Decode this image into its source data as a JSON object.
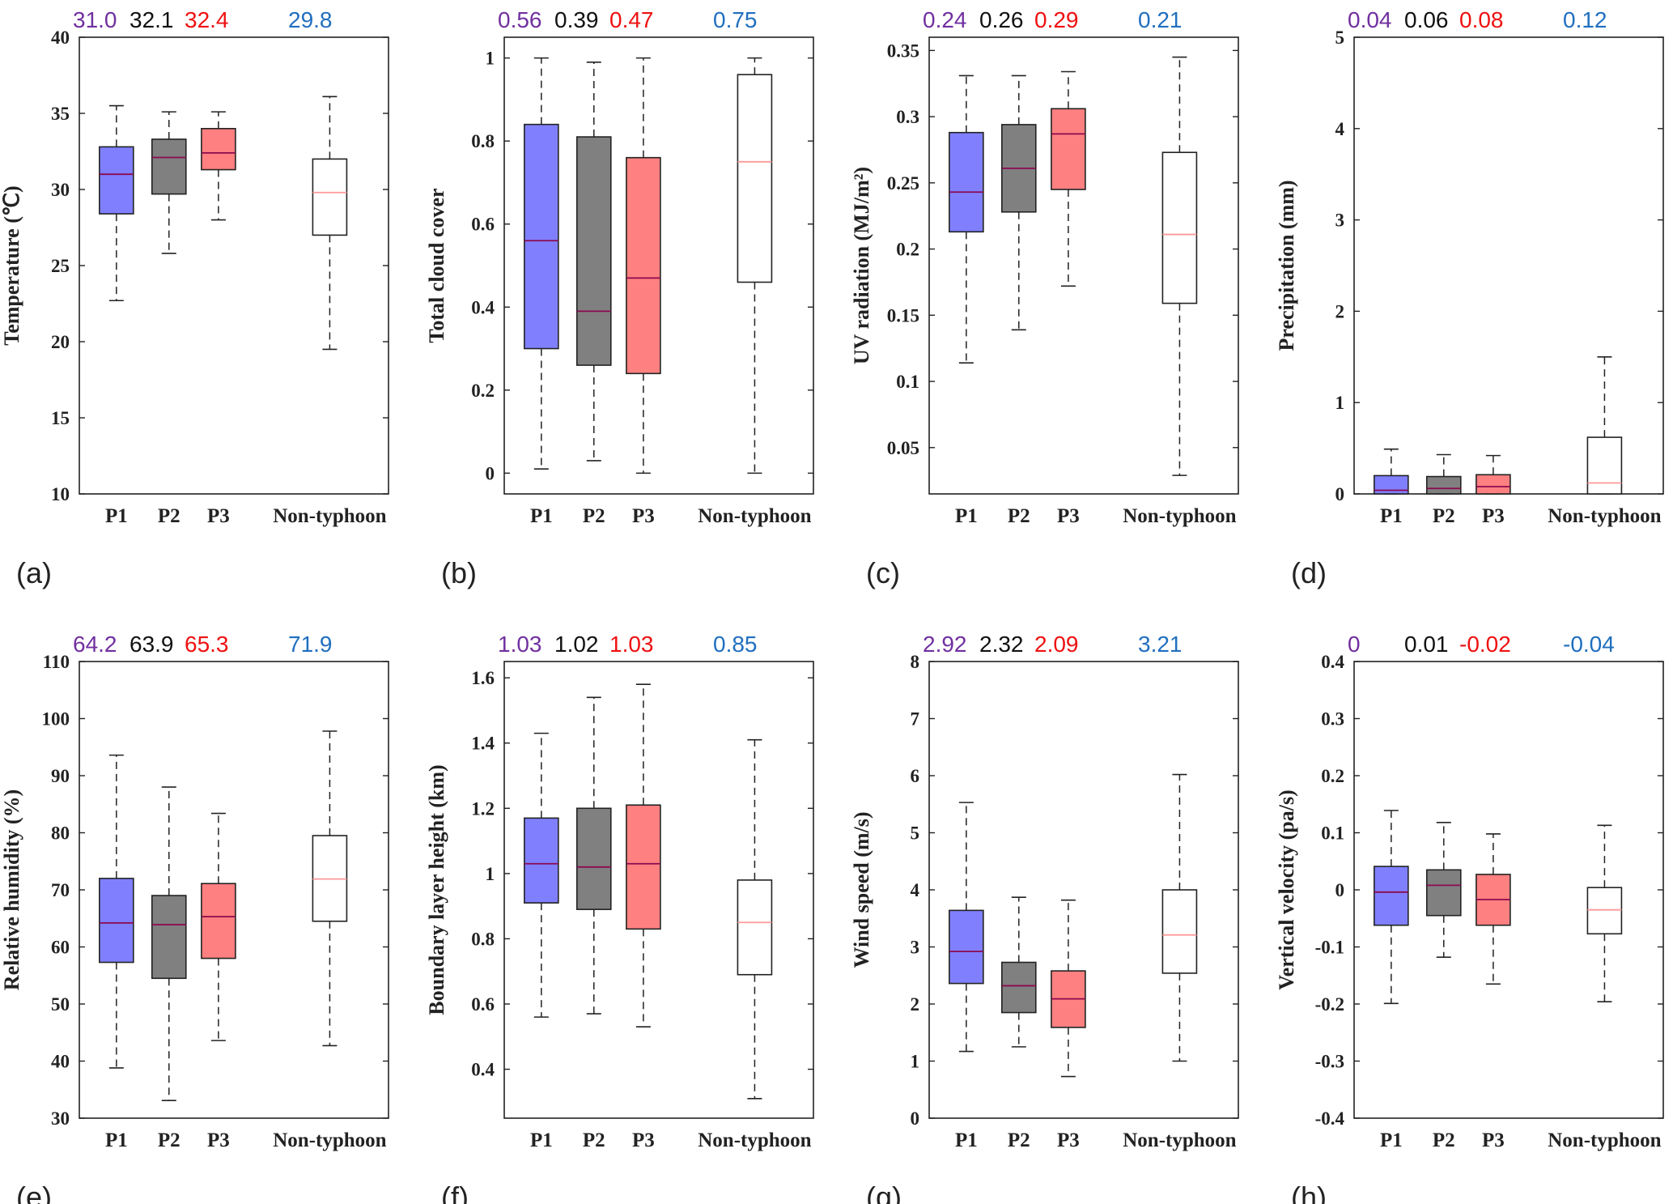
{
  "colors": {
    "P1": "#8080ff",
    "P2": "#808080",
    "P3": "#ff8080",
    "Non-typhoon": "#ffffff",
    "median_text": [
      "#7030a0",
      "#111111",
      "#ee1111",
      "#1f6fbf"
    ],
    "median_line": [
      "#8b0a50",
      "#8b0a50",
      "#8b0a50",
      "#ff9999"
    ]
  },
  "chart_data": [
    {
      "type": "box",
      "panel_label": "(a)",
      "ylabel": "Temperature (℃)",
      "ylim": [
        10,
        40
      ],
      "yticks": [
        "10",
        "15",
        "20",
        "25",
        "30",
        "35",
        "40"
      ],
      "categories": [
        "P1",
        "P2",
        "P3",
        "Non-typhoon"
      ],
      "median_labels": [
        "31.0",
        "32.1",
        "32.4",
        "29.8"
      ],
      "boxes": [
        {
          "whisker_low": 22.7,
          "q1": 28.4,
          "median": 31.0,
          "q3": 32.8,
          "whisker_high": 35.5
        },
        {
          "whisker_low": 25.8,
          "q1": 29.7,
          "median": 32.1,
          "q3": 33.3,
          "whisker_high": 35.1
        },
        {
          "whisker_low": 28.0,
          "q1": 31.3,
          "median": 32.4,
          "q3": 34.0,
          "whisker_high": 35.1
        },
        {
          "whisker_low": 19.5,
          "q1": 27.0,
          "median": 29.8,
          "q3": 32.0,
          "whisker_high": 36.1
        }
      ]
    },
    {
      "type": "box",
      "panel_label": "(b)",
      "ylabel": "Total cloud cover",
      "ylim": [
        -0.05,
        1.05
      ],
      "yticks": [
        "0",
        "0.2",
        "0.4",
        "0.6",
        "0.8",
        "1"
      ],
      "categories": [
        "P1",
        "P2",
        "P3",
        "Non-typhoon"
      ],
      "median_labels": [
        "0.56",
        "0.39",
        "0.47",
        "0.75"
      ],
      "boxes": [
        {
          "whisker_low": 0.01,
          "q1": 0.3,
          "median": 0.56,
          "q3": 0.84,
          "whisker_high": 1.0
        },
        {
          "whisker_low": 0.03,
          "q1": 0.26,
          "median": 0.39,
          "q3": 0.81,
          "whisker_high": 0.99
        },
        {
          "whisker_low": 0.0,
          "q1": 0.24,
          "median": 0.47,
          "q3": 0.76,
          "whisker_high": 1.0
        },
        {
          "whisker_low": 0.0,
          "q1": 0.46,
          "median": 0.75,
          "q3": 0.96,
          "whisker_high": 1.0
        }
      ]
    },
    {
      "type": "box",
      "panel_label": "(c)",
      "ylabel": "UV radiation (MJ/m²)",
      "ylim": [
        0.015,
        0.36
      ],
      "yticks": [
        "0.05",
        "0.1",
        "0.15",
        "0.2",
        "0.25",
        "0.3",
        "0.35"
      ],
      "categories": [
        "P1",
        "P2",
        "P3",
        "Non-typhoon"
      ],
      "median_labels": [
        "0.24",
        "0.26",
        "0.29",
        "0.21"
      ],
      "boxes": [
        {
          "whisker_low": 0.114,
          "q1": 0.213,
          "median": 0.243,
          "q3": 0.288,
          "whisker_high": 0.331
        },
        {
          "whisker_low": 0.139,
          "q1": 0.228,
          "median": 0.261,
          "q3": 0.294,
          "whisker_high": 0.331
        },
        {
          "whisker_low": 0.172,
          "q1": 0.245,
          "median": 0.287,
          "q3": 0.306,
          "whisker_high": 0.334
        },
        {
          "whisker_low": 0.029,
          "q1": 0.159,
          "median": 0.211,
          "q3": 0.273,
          "whisker_high": 0.345
        }
      ]
    },
    {
      "type": "box",
      "panel_label": "(d)",
      "ylabel": "Precipitation (mm)",
      "ylim": [
        0,
        5
      ],
      "yticks": [
        "0",
        "1",
        "2",
        "3",
        "4",
        "5"
      ],
      "categories": [
        "P1",
        "P2",
        "P3",
        "Non-typhoon"
      ],
      "median_labels": [
        "0.04",
        "0.06",
        "0.08",
        "0.12"
      ],
      "boxes": [
        {
          "whisker_low": 0.0,
          "q1": 0.0,
          "median": 0.04,
          "q3": 0.2,
          "whisker_high": 0.49
        },
        {
          "whisker_low": 0.0,
          "q1": 0.0,
          "median": 0.06,
          "q3": 0.19,
          "whisker_high": 0.43
        },
        {
          "whisker_low": 0.0,
          "q1": 0.0,
          "median": 0.08,
          "q3": 0.21,
          "whisker_high": 0.42
        },
        {
          "whisker_low": 0.0,
          "q1": 0.0,
          "median": 0.12,
          "q3": 0.62,
          "whisker_high": 1.5
        }
      ]
    },
    {
      "type": "box",
      "panel_label": "(e)",
      "ylabel": "Relative humidity (%)",
      "ylim": [
        30,
        110
      ],
      "yticks": [
        "30",
        "40",
        "50",
        "60",
        "70",
        "80",
        "90",
        "100",
        "110"
      ],
      "categories": [
        "P1",
        "P2",
        "P3",
        "Non-typhoon"
      ],
      "median_labels": [
        "64.2",
        "63.9",
        "65.3",
        "71.9"
      ],
      "boxes": [
        {
          "whisker_low": 38.8,
          "q1": 57.3,
          "median": 64.2,
          "q3": 72.0,
          "whisker_high": 93.6
        },
        {
          "whisker_low": 33.1,
          "q1": 54.5,
          "median": 63.9,
          "q3": 69.0,
          "whisker_high": 88.0
        },
        {
          "whisker_low": 43.6,
          "q1": 58.0,
          "median": 65.3,
          "q3": 71.1,
          "whisker_high": 83.4
        },
        {
          "whisker_low": 42.7,
          "q1": 64.5,
          "median": 71.9,
          "q3": 79.5,
          "whisker_high": 97.8
        }
      ]
    },
    {
      "type": "box",
      "panel_label": "(f)",
      "ylabel": "Boundary layer height (km)",
      "ylim": [
        0.25,
        1.65
      ],
      "yticks": [
        "0.4",
        "0.6",
        "0.8",
        "1",
        "1.2",
        "1.4",
        "1.6"
      ],
      "categories": [
        "P1",
        "P2",
        "P3",
        "Non-typhoon"
      ],
      "median_labels": [
        "1.03",
        "1.02",
        "1.03",
        "0.85"
      ],
      "boxes": [
        {
          "whisker_low": 0.56,
          "q1": 0.91,
          "median": 1.03,
          "q3": 1.17,
          "whisker_high": 1.43
        },
        {
          "whisker_low": 0.57,
          "q1": 0.89,
          "median": 1.02,
          "q3": 1.2,
          "whisker_high": 1.54
        },
        {
          "whisker_low": 0.53,
          "q1": 0.83,
          "median": 1.03,
          "q3": 1.21,
          "whisker_high": 1.58
        },
        {
          "whisker_low": 0.31,
          "q1": 0.69,
          "median": 0.85,
          "q3": 0.98,
          "whisker_high": 1.41
        }
      ]
    },
    {
      "type": "box",
      "panel_label": "(g)",
      "ylabel": "Wind speed (m/s)",
      "ylim": [
        0,
        8
      ],
      "yticks": [
        "0",
        "1",
        "2",
        "3",
        "4",
        "5",
        "6",
        "7",
        "8"
      ],
      "categories": [
        "P1",
        "P2",
        "P3",
        "Non-typhoon"
      ],
      "median_labels": [
        "2.92",
        "2.32",
        "2.09",
        "3.21"
      ],
      "boxes": [
        {
          "whisker_low": 1.17,
          "q1": 2.36,
          "median": 2.92,
          "q3": 3.64,
          "whisker_high": 5.53
        },
        {
          "whisker_low": 1.25,
          "q1": 1.85,
          "median": 2.32,
          "q3": 2.73,
          "whisker_high": 3.87
        },
        {
          "whisker_low": 0.73,
          "q1": 1.59,
          "median": 2.09,
          "q3": 2.58,
          "whisker_high": 3.82
        },
        {
          "whisker_low": 1.0,
          "q1": 2.54,
          "median": 3.21,
          "q3": 4.0,
          "whisker_high": 6.02
        }
      ]
    },
    {
      "type": "box",
      "panel_label": "(h)",
      "ylabel": "Vertical velocity (pa/s)",
      "ylim": [
        -0.4,
        0.4
      ],
      "yticks": [
        "-0.4",
        "-0.3",
        "-0.2",
        "-0.1",
        "0",
        "0.1",
        "0.2",
        "0.3",
        "0.4"
      ],
      "categories": [
        "P1",
        "P2",
        "P3",
        "Non-typhoon"
      ],
      "median_labels": [
        "0",
        "0.01",
        "-0.02",
        "-0.04"
      ],
      "boxes": [
        {
          "whisker_low": -0.199,
          "q1": -0.062,
          "median": -0.004,
          "q3": 0.041,
          "whisker_high": 0.139
        },
        {
          "whisker_low": -0.118,
          "q1": -0.045,
          "median": 0.008,
          "q3": 0.035,
          "whisker_high": 0.118
        },
        {
          "whisker_low": -0.165,
          "q1": -0.062,
          "median": -0.017,
          "q3": 0.027,
          "whisker_high": 0.098
        },
        {
          "whisker_low": -0.196,
          "q1": -0.077,
          "median": -0.035,
          "q3": 0.004,
          "whisker_high": 0.113
        }
      ]
    }
  ]
}
